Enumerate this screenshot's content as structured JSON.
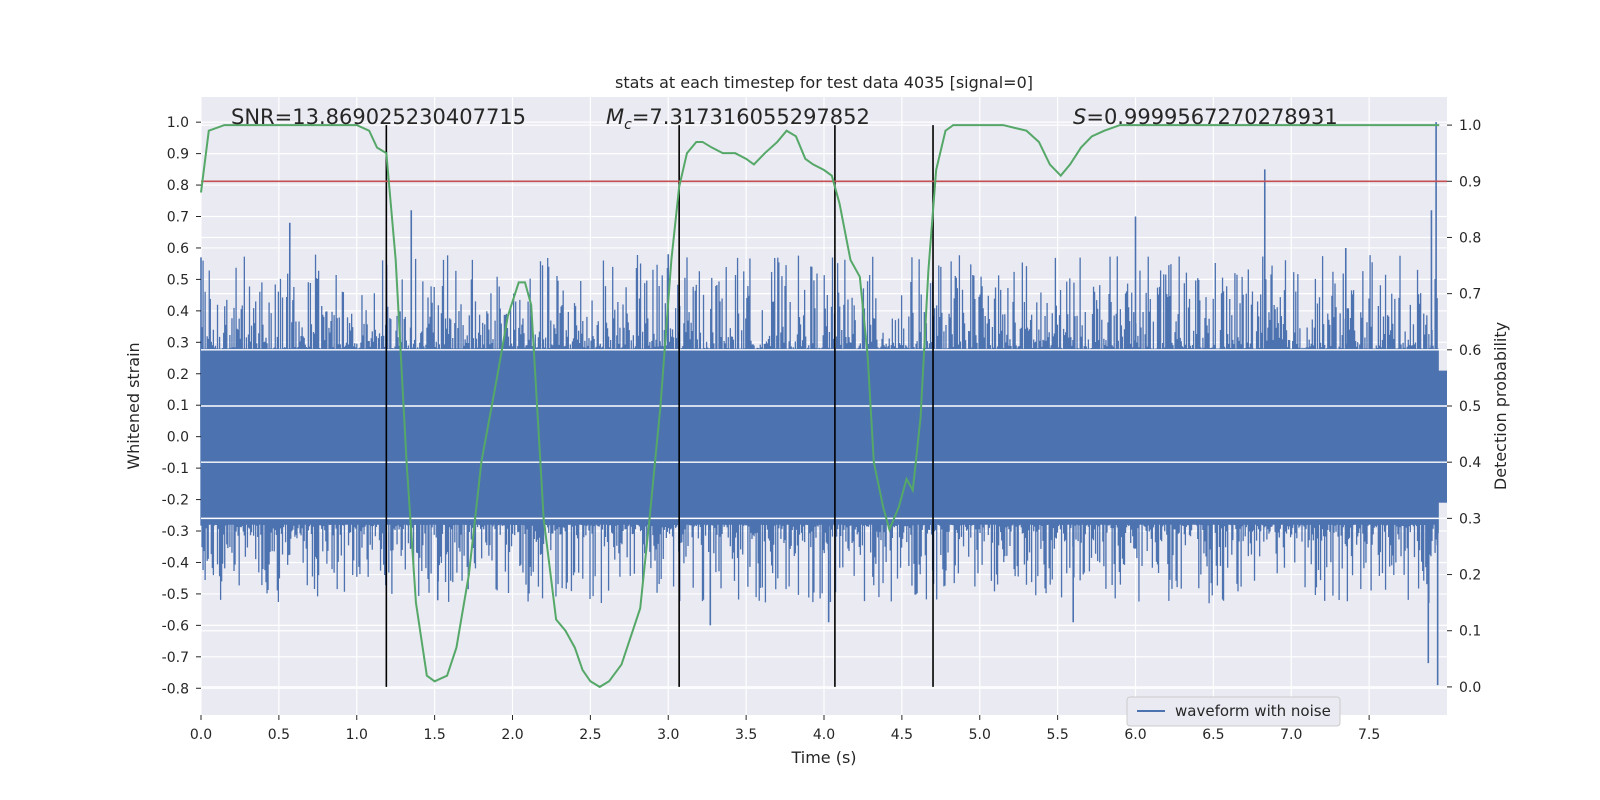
{
  "chart_data": {
    "type": "line",
    "title": "stats at each timestep for test data 4035 [signal=0]",
    "xlabel": "Time (s)",
    "ylabel_left": "Whitened strain",
    "ylabel_right": "Detection probability",
    "xlim": [
      0.0,
      8.0
    ],
    "ylim_left": [
      -0.885,
      1.08
    ],
    "ylim_right": [
      -0.05,
      1.05
    ],
    "x_ticks": [
      "0.0",
      "0.5",
      "1.0",
      "1.5",
      "2.0",
      "2.5",
      "3.0",
      "3.5",
      "4.0",
      "4.5",
      "5.0",
      "5.5",
      "6.0",
      "6.5",
      "7.0",
      "7.5"
    ],
    "y_left_ticks": [
      "1.0",
      "0.9",
      "0.8",
      "0.7",
      "0.6",
      "0.5",
      "0.4",
      "0.3",
      "0.2",
      "0.1",
      "0.0",
      "-0.1",
      "-0.2",
      "-0.3",
      "-0.4",
      "-0.5",
      "-0.6",
      "-0.7",
      "-0.8"
    ],
    "y_right_ticks": [
      "1.0",
      "0.9",
      "0.8",
      "0.7",
      "0.6",
      "0.5",
      "0.4",
      "0.3",
      "0.2",
      "0.1",
      "0.0"
    ],
    "grid": true,
    "annotations": {
      "snr": "SNR=13.869025230407715",
      "mc_symbol": "M",
      "mc_sub": "c",
      "mc_value": "=7.317316055297852",
      "s_symbol": "S",
      "s_value": "=0.9999567270278931"
    },
    "threshold": 0.9,
    "vlines": [
      1.19,
      3.07,
      4.07,
      4.7
    ],
    "legend": {
      "label": "waveform with noise",
      "placement": "lower-right"
    },
    "series": [
      {
        "name": "waveform with noise",
        "style": "filled-noise",
        "envelope_abs": 0.28,
        "peaks": [
          {
            "x": 0.0,
            "y": 0.57
          },
          {
            "x": 0.57,
            "y": 0.68
          },
          {
            "x": 1.35,
            "y": 0.72
          },
          {
            "x": 1.52,
            "y": -0.52
          },
          {
            "x": 3.0,
            "y": 0.58
          },
          {
            "x": 3.27,
            "y": -0.6
          },
          {
            "x": 4.03,
            "y": -0.59
          },
          {
            "x": 5.6,
            "y": -0.59
          },
          {
            "x": 6.0,
            "y": 0.7
          },
          {
            "x": 6.83,
            "y": 0.85
          },
          {
            "x": 7.35,
            "y": 0.6
          },
          {
            "x": 7.9,
            "y": 0.72
          },
          {
            "x": 7.93,
            "y": 1.0
          },
          {
            "x": 7.94,
            "y": -0.79
          },
          {
            "x": 7.88,
            "y": -0.72
          }
        ]
      },
      {
        "name": "detection probability",
        "axis": "right",
        "x": [
          0.0,
          0.05,
          0.15,
          0.3,
          0.5,
          0.7,
          0.9,
          1.0,
          1.08,
          1.13,
          1.19,
          1.25,
          1.32,
          1.38,
          1.45,
          1.5,
          1.58,
          1.64,
          1.72,
          1.8,
          1.9,
          1.97,
          2.04,
          2.08,
          2.12,
          2.2,
          2.28,
          2.34,
          2.4,
          2.45,
          2.5,
          2.56,
          2.62,
          2.7,
          2.76,
          2.82,
          2.88,
          2.95,
          3.02,
          3.07,
          3.12,
          3.18,
          3.22,
          3.28,
          3.35,
          3.43,
          3.5,
          3.55,
          3.62,
          3.7,
          3.76,
          3.82,
          3.88,
          3.93,
          4.0,
          4.05,
          4.1,
          4.17,
          4.23,
          4.28,
          4.32,
          4.38,
          4.42,
          4.48,
          4.53,
          4.57,
          4.62,
          4.67,
          4.72,
          4.78,
          4.83,
          4.9,
          5.0,
          5.15,
          5.3,
          5.38,
          5.45,
          5.52,
          5.58,
          5.65,
          5.72,
          5.8,
          5.9,
          6.1,
          6.4,
          6.8,
          7.2,
          7.6,
          7.95
        ],
        "values": [
          0.88,
          0.99,
          1.0,
          1.0,
          1.0,
          1.0,
          1.0,
          1.0,
          0.99,
          0.96,
          0.95,
          0.76,
          0.4,
          0.15,
          0.02,
          0.01,
          0.02,
          0.07,
          0.2,
          0.4,
          0.55,
          0.66,
          0.72,
          0.72,
          0.68,
          0.3,
          0.12,
          0.1,
          0.07,
          0.03,
          0.01,
          0.0,
          0.01,
          0.04,
          0.09,
          0.14,
          0.3,
          0.5,
          0.76,
          0.89,
          0.95,
          0.97,
          0.97,
          0.96,
          0.95,
          0.95,
          0.94,
          0.93,
          0.95,
          0.97,
          0.99,
          0.98,
          0.94,
          0.93,
          0.92,
          0.91,
          0.86,
          0.76,
          0.73,
          0.59,
          0.4,
          0.32,
          0.28,
          0.32,
          0.37,
          0.35,
          0.48,
          0.74,
          0.92,
          0.99,
          1.0,
          1.0,
          1.0,
          1.0,
          0.99,
          0.97,
          0.93,
          0.91,
          0.93,
          0.96,
          0.98,
          0.99,
          1.0,
          1.0,
          1.0,
          1.0,
          1.0,
          1.0,
          1.0
        ]
      },
      {
        "name": "threshold",
        "axis": "right",
        "values": [
          0.9,
          0.9
        ]
      }
    ]
  }
}
